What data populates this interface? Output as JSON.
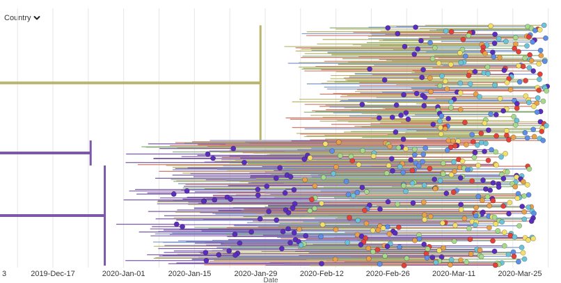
{
  "controls": {
    "color_by_label": "Country",
    "dropdown_icon": "chevron-down-icon"
  },
  "chart_data": {
    "type": "phylogenetic-tree-time",
    "xlabel": "Date",
    "x_ticks": [
      "2019-Dec-17",
      "2020-Jan-01",
      "2020-Jan-15",
      "2020-Jan-29",
      "2020-Feb-12",
      "2020-Feb-26",
      "2020-Mar-11",
      "2020-Mar-25"
    ],
    "x_domain": [
      "2019-Dec-04",
      "2020-Apr-01"
    ],
    "edge_tick_label": "3",
    "grid": "vertical",
    "branch_colors": {
      "purple": "#7b59a8",
      "olive": "#b9b56e",
      "green": "#8aaf7b",
      "red": "#cf7a68",
      "blue": "#7f99cf"
    },
    "tip_colors": [
      "#5b2dbd",
      "#e3423a",
      "#f2e06a",
      "#a6d98c",
      "#5e8ee6",
      "#6cc3d8",
      "#e8a04a"
    ],
    "tree": {
      "root": "2019-Dec-05",
      "clades": [
        {
          "name": "",
          "color": "purple",
          "start": "2019-Dec-05",
          "split": "2019-Dec-25",
          "first_tip": "2020-Jan-12",
          "last_tip": "2020-Mar-22",
          "rows": [
            0.5,
            0.6
          ],
          "tips": 60
        },
        {
          "name": "",
          "color": "olive",
          "start": "2019-Dec-05",
          "split": "2020-Jan-30",
          "first_tip": "2020-Feb-18",
          "last_tip": "2020-Mar-31",
          "rows": [
            0.04,
            0.5
          ],
          "tips": 180
        },
        {
          "name": "",
          "color": "purple",
          "start": "2019-Dec-05",
          "split": "2019-Dec-28",
          "first_tip": "2020-Jan-05",
          "last_tip": "2020-Mar-28",
          "rows": [
            0.6,
            1.0
          ],
          "tips": 260
        }
      ]
    }
  }
}
